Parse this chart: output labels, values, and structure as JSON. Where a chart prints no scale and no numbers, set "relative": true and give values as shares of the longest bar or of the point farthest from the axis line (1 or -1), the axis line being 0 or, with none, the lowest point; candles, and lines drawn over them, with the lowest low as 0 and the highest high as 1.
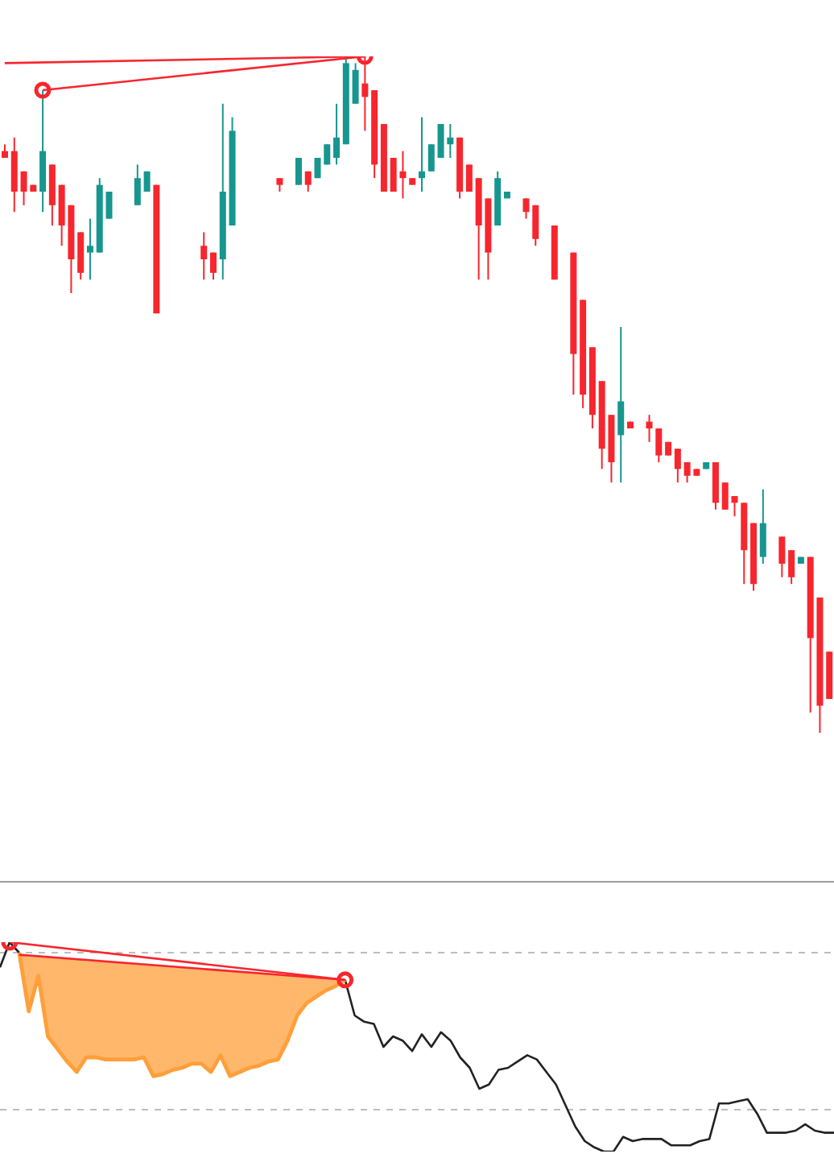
{
  "chart_data": [
    {
      "type": "candlestick",
      "relative": true,
      "categories": [
        null,
        null,
        null,
        null,
        null,
        null,
        null,
        null,
        null,
        null,
        null,
        null,
        null,
        null,
        null,
        null,
        null,
        null,
        null,
        null,
        null,
        null,
        null,
        null,
        null,
        null,
        null,
        null,
        null,
        null,
        null,
        null,
        null,
        null,
        null,
        null,
        null,
        null,
        null,
        null,
        null,
        null,
        null,
        null,
        null,
        null,
        null,
        null,
        null,
        null,
        null,
        null,
        null,
        null,
        null,
        null,
        null,
        null,
        null,
        null,
        null,
        null,
        null,
        null,
        null,
        null,
        null,
        null,
        null,
        null,
        null,
        null,
        null,
        null,
        null,
        null,
        null,
        null,
        null,
        null,
        null,
        null,
        null,
        null,
        null,
        null,
        null,
        null
      ],
      "ohlc": [
        [
          0.86,
          0.87,
          0.85,
          0.85
        ],
        [
          0.86,
          0.88,
          0.77,
          0.8
        ],
        [
          0.83,
          0.83,
          0.78,
          0.8
        ],
        [
          0.81,
          0.81,
          0.8,
          0.8
        ],
        [
          0.8,
          0.95,
          0.77,
          0.86
        ],
        [
          0.84,
          0.84,
          0.75,
          0.78
        ],
        [
          0.81,
          0.81,
          0.72,
          0.75
        ],
        [
          0.78,
          0.78,
          0.65,
          0.7
        ],
        [
          0.74,
          0.74,
          0.67,
          0.68
        ],
        [
          0.71,
          0.76,
          0.67,
          0.72
        ],
        [
          0.71,
          0.82,
          0.71,
          0.81
        ],
        [
          0.76,
          0.8,
          0.76,
          0.8
        ],
        null,
        null,
        [
          0.78,
          0.84,
          0.78,
          0.82
        ],
        [
          0.8,
          0.83,
          0.8,
          0.83
        ],
        [
          0.81,
          0.81,
          0.62,
          0.62
        ],
        null,
        null,
        null,
        null,
        [
          0.72,
          0.74,
          0.67,
          0.7
        ],
        [
          0.71,
          0.71,
          0.67,
          0.68
        ],
        [
          0.7,
          0.93,
          0.67,
          0.8
        ],
        [
          0.75,
          0.91,
          0.75,
          0.89
        ],
        null,
        null,
        null,
        null,
        [
          0.82,
          0.82,
          0.8,
          0.81
        ],
        null,
        [
          0.81,
          0.85,
          0.81,
          0.85
        ],
        [
          0.83,
          0.83,
          0.8,
          0.81
        ],
        [
          0.82,
          0.85,
          0.82,
          0.85
        ],
        [
          0.84,
          0.87,
          0.84,
          0.87
        ],
        [
          0.85,
          0.93,
          0.84,
          0.88
        ],
        [
          0.87,
          1,
          0.87,
          0.99
        ],
        [
          0.93,
          0.99,
          0.93,
          0.98
        ],
        [
          0.96,
          1,
          0.89,
          0.94
        ],
        [
          0.95,
          0.95,
          0.82,
          0.84
        ],
        [
          0.9,
          0.9,
          0.8,
          0.8
        ],
        [
          0.85,
          0.85,
          0.8,
          0.8
        ],
        [
          0.83,
          0.86,
          0.79,
          0.82
        ],
        [
          0.82,
          0.82,
          0.81,
          0.81
        ],
        [
          0.82,
          0.91,
          0.8,
          0.83
        ],
        [
          0.83,
          0.87,
          0.83,
          0.87
        ],
        [
          0.85,
          0.9,
          0.85,
          0.9
        ],
        [
          0.87,
          0.9,
          0.85,
          0.88
        ],
        [
          0.88,
          0.88,
          0.79,
          0.8
        ],
        [
          0.84,
          0.84,
          0.8,
          0.8
        ],
        [
          0.82,
          0.82,
          0.67,
          0.75
        ],
        [
          0.79,
          0.79,
          0.67,
          0.71
        ],
        [
          0.75,
          0.83,
          0.75,
          0.82
        ],
        [
          0.79,
          0.8,
          0.79,
          0.8
        ],
        null,
        [
          0.79,
          0.79,
          0.76,
          0.77
        ],
        [
          0.78,
          0.78,
          0.72,
          0.73
        ],
        null,
        [
          0.75,
          0.75,
          0.67,
          0.67
        ],
        null,
        [
          0.71,
          0.71,
          0.5,
          0.56
        ],
        [
          0.64,
          0.64,
          0.48,
          0.5
        ],
        [
          0.57,
          0.57,
          0.45,
          0.47
        ],
        [
          0.52,
          0.52,
          0.39,
          0.42
        ],
        [
          0.47,
          0.47,
          0.37,
          0.4
        ],
        [
          0.44,
          0.6,
          0.37,
          0.49
        ],
        [
          0.46,
          0.46,
          0.45,
          0.45
        ],
        null,
        [
          0.46,
          0.47,
          0.43,
          0.45
        ],
        [
          0.45,
          0.45,
          0.4,
          0.41
        ],
        [
          0.43,
          0.43,
          0.41,
          0.41
        ],
        [
          0.42,
          0.42,
          0.37,
          0.39
        ],
        [
          0.4,
          0.4,
          0.37,
          0.38
        ],
        [
          0.39,
          0.39,
          0.38,
          0.38
        ],
        [
          0.39,
          0.4,
          0.39,
          0.4
        ],
        [
          0.4,
          0.4,
          0.33,
          0.34
        ],
        [
          0.37,
          0.37,
          0.33,
          0.33
        ],
        [
          0.35,
          0.35,
          0.32,
          0.34
        ],
        [
          0.34,
          0.34,
          0.22,
          0.27
        ],
        [
          0.31,
          0.31,
          0.21,
          0.22
        ],
        [
          0.26,
          0.36,
          0.25,
          0.31
        ],
        null,
        [
          0.29,
          0.29,
          0.23,
          0.25
        ],
        [
          0.27,
          0.27,
          0.22,
          0.23
        ],
        [
          0.25,
          0.26,
          0.25,
          0.26
        ],
        [
          0.26,
          0.26,
          0.03,
          0.14
        ],
        [
          0.2,
          0.2,
          0,
          0.04
        ],
        [
          0.12,
          0.12,
          0.05,
          0.05
        ]
      ],
      "colors": [
        "#f7262e",
        "#f7262e",
        "#f7262e",
        "#f7262e",
        "#17968f",
        "#f7262e",
        "#f7262e",
        "#f7262e",
        "#f7262e",
        "#17968f",
        "#17968f",
        "#17968f",
        null,
        null,
        "#17968f",
        "#17968f",
        "#f7262e",
        null,
        null,
        null,
        null,
        "#f7262e",
        "#f7262e",
        "#17968f",
        "#17968f",
        null,
        null,
        null,
        null,
        "#f7262e",
        null,
        "#17968f",
        "#f7262e",
        "#17968f",
        "#17968f",
        "#17968f",
        "#17968f",
        "#17968f",
        "#f7262e",
        "#f7262e",
        "#f7262e",
        "#f7262e",
        "#f7262e",
        "#f7262e",
        "#17968f",
        "#17968f",
        "#17968f",
        "#17968f",
        "#f7262e",
        "#f7262e",
        "#f7262e",
        "#f7262e",
        "#17968f",
        "#17968f",
        null,
        "#f7262e",
        "#f7262e",
        null,
        "#f7262e",
        null,
        "#f7262e",
        "#f7262e",
        "#f7262e",
        "#f7262e",
        "#f7262e",
        "#17968f",
        "#f7262e",
        null,
        "#f7262e",
        "#f7262e",
        "#f7262e",
        "#f7262e",
        "#f7262e",
        "#f7262e",
        "#17968f",
        "#f7262e",
        "#f7262e",
        "#f7262e",
        "#f7262e",
        "#f7262e",
        "#17968f",
        null,
        "#f7262e",
        "#f7262e",
        "#17968f",
        "#f7262e",
        "#f7262e",
        "#f7262e"
      ],
      "series": [
        {
          "type": "line",
          "color": "#f7262e",
          "marker": "circle",
          "values": [
            null,
            null,
            null,
            null,
            0.95,
            null,
            null,
            null,
            null,
            null,
            null,
            null,
            null,
            null,
            null,
            null,
            null,
            null,
            null,
            null,
            null,
            null,
            null,
            null,
            null,
            null,
            null,
            null,
            null,
            null,
            null,
            null,
            null,
            null,
            null,
            null,
            null,
            null,
            1,
            null,
            null,
            null,
            null,
            null,
            null,
            null,
            null,
            null,
            null,
            null,
            null,
            null,
            null,
            null,
            null,
            null,
            null,
            null,
            null,
            null,
            null,
            null,
            null,
            null,
            null,
            null,
            null,
            null,
            null,
            null,
            null,
            null,
            null,
            null,
            null,
            null,
            null,
            null,
            null,
            null,
            null,
            null,
            null,
            null,
            null,
            null,
            null,
            null
          ]
        },
        {
          "type": "line",
          "color": "#f7262e",
          "values": [
            0.99,
            null,
            null,
            null,
            null,
            null,
            null,
            null,
            null,
            null,
            null,
            null,
            null,
            null,
            null,
            null,
            null,
            null,
            null,
            null,
            null,
            null,
            null,
            null,
            null,
            null,
            null,
            null,
            null,
            null,
            null,
            null,
            null,
            null,
            null,
            null,
            null,
            null,
            1,
            null,
            null,
            null,
            null,
            null,
            null,
            null,
            null,
            null,
            null,
            null,
            null,
            null,
            null,
            null,
            null,
            null,
            null,
            null,
            null,
            null,
            null,
            null,
            null,
            null,
            null,
            null,
            null,
            null,
            null,
            null,
            null,
            null,
            null,
            null,
            null,
            null,
            null,
            null,
            null,
            null,
            null,
            null,
            null,
            null,
            null,
            null,
            null,
            null
          ]
        }
      ]
    },
    {
      "type": "line",
      "relative": true,
      "categories": [
        null,
        null,
        null,
        null,
        null,
        null,
        null,
        null,
        null,
        null,
        null,
        null,
        null,
        null,
        null,
        null,
        null,
        null,
        null,
        null,
        null,
        null,
        null,
        null,
        null,
        null,
        null,
        null,
        null,
        null,
        null,
        null,
        null,
        null,
        null,
        null,
        null,
        null,
        null,
        null,
        null,
        null,
        null,
        null,
        null,
        null,
        null,
        null,
        null,
        null,
        null,
        null,
        null,
        null,
        null,
        null,
        null,
        null,
        null,
        null,
        null,
        null,
        null,
        null,
        null,
        null,
        null,
        null,
        null,
        null,
        null,
        null,
        null,
        null,
        null,
        null,
        null,
        null,
        null,
        null,
        null,
        null,
        null,
        null,
        null,
        null,
        null,
        null
      ],
      "ref_lines": [
        {
          "axis": "y",
          "value": 0.95,
          "color": "#bdbdbd",
          "line_style": "dashed"
        },
        {
          "axis": "y",
          "value": 0.2,
          "color": "#bdbdbd",
          "line_style": "dashed"
        }
      ],
      "series": [
        {
          "type": "line",
          "color": "#222222",
          "values": [
            0.88,
            1,
            0.95,
            null,
            null,
            null,
            null,
            null,
            null,
            null,
            null,
            null,
            null,
            null,
            null,
            null,
            null,
            null,
            null,
            null,
            null,
            null,
            null,
            null,
            null,
            null,
            null,
            null,
            null,
            null,
            null,
            null,
            null,
            null,
            null,
            null,
            0.82,
            0.65,
            0.62,
            0.61,
            0.5,
            0.55,
            0.53,
            0.48,
            0.56,
            0.5,
            0.57,
            0.53,
            0.45,
            0.4,
            0.3,
            0.32,
            0.39,
            0.4,
            0.43,
            0.46,
            0.44,
            0.38,
            0.32,
            0.22,
            0.12,
            0.05,
            0.02,
            0,
            0,
            0.07,
            0.05,
            0.06,
            0.06,
            0.06,
            0.03,
            0.03,
            0.03,
            0.05,
            0.06,
            0.23,
            0.23,
            0.24,
            0.25,
            0.18,
            0.09,
            0.09,
            0.09,
            0.1,
            0.13,
            0.1,
            0.09,
            0.09
          ]
        },
        {
          "type": "line",
          "color": "#ff9f3a",
          "values": [
            null,
            null,
            0.95,
            0.67,
            0.84,
            0.55,
            0.49,
            0.43,
            0.38,
            0.45,
            0.45,
            0.44,
            0.44,
            0.44,
            0.44,
            0.45,
            0.36,
            0.37,
            0.39,
            0.4,
            0.42,
            0.42,
            0.38,
            0.46,
            0.36,
            0.38,
            0.4,
            0.41,
            0.43,
            0.44,
            0.53,
            0.65,
            0.71,
            0.74,
            0.77,
            0.79,
            0.82,
            null,
            null,
            null,
            null,
            null,
            null,
            null,
            null,
            null,
            null,
            null,
            null,
            null,
            null,
            null,
            null,
            null,
            null,
            null,
            null,
            null,
            null,
            null,
            null,
            null,
            null,
            null,
            null,
            null,
            null,
            null,
            null,
            null,
            null,
            null,
            null,
            null,
            null,
            null,
            null,
            null,
            null,
            null,
            null,
            null,
            null,
            null,
            null,
            null,
            null,
            null
          ],
          "lower": [
            null,
            null,
            0.95,
            0.67,
            0.84,
            0.55,
            0.49,
            0.43,
            0.38,
            0.45,
            0.45,
            0.44,
            0.44,
            0.44,
            0.44,
            0.45,
            0.36,
            0.37,
            0.39,
            0.4,
            0.42,
            0.42,
            0.38,
            0.46,
            0.36,
            0.38,
            0.4,
            0.41,
            0.43,
            0.44,
            0.53,
            0.65,
            0.71,
            0.74,
            0.77,
            0.79,
            0.82,
            null,
            null,
            null,
            null,
            null,
            null,
            null,
            null,
            null,
            null,
            null,
            null,
            null,
            null,
            null,
            null,
            null,
            null,
            null,
            null,
            null,
            null,
            null,
            null,
            null,
            null,
            null,
            null,
            null,
            null,
            null,
            null,
            null,
            null,
            null,
            null,
            null,
            null,
            null,
            null,
            null,
            null,
            null,
            null,
            null,
            null,
            null,
            null,
            null,
            null,
            null
          ],
          "upper": [
            null,
            null,
            0.94,
            0.93,
            0.93,
            0.93,
            0.92,
            0.92,
            0.92,
            0.91,
            0.91,
            0.91,
            0.9,
            0.9,
            0.9,
            0.89,
            0.89,
            0.89,
            0.88,
            0.88,
            0.88,
            0.87,
            0.87,
            0.87,
            0.86,
            0.86,
            0.86,
            0.85,
            0.85,
            0.85,
            0.84,
            0.84,
            0.84,
            0.83,
            0.83,
            0.83,
            0.82,
            null,
            null,
            null,
            null,
            null,
            null,
            null,
            null,
            null,
            null,
            null,
            null,
            null,
            null,
            null,
            null,
            null,
            null,
            null,
            null,
            null,
            null,
            null,
            null,
            null,
            null,
            null,
            null,
            null,
            null,
            null,
            null,
            null,
            null,
            null,
            null,
            null,
            null,
            null,
            null,
            null,
            null,
            null,
            null,
            null,
            null,
            null,
            null,
            null,
            null,
            null
          ]
        },
        {
          "type": "line",
          "color": "#f7262e",
          "marker": "circle",
          "values": [
            null,
            1,
            null,
            null,
            null,
            null,
            null,
            null,
            null,
            null,
            null,
            null,
            null,
            null,
            null,
            null,
            null,
            null,
            null,
            null,
            null,
            null,
            null,
            null,
            null,
            null,
            null,
            null,
            null,
            null,
            null,
            null,
            null,
            null,
            null,
            null,
            0.82,
            null,
            null,
            null,
            null,
            null,
            null,
            null,
            null,
            null,
            null,
            null,
            null,
            null,
            null,
            null,
            null,
            null,
            null,
            null,
            null,
            null,
            null,
            null,
            null,
            null,
            null,
            null,
            null,
            null,
            null,
            null,
            null,
            null,
            null,
            null,
            null,
            null,
            null,
            null,
            null,
            null,
            null,
            null,
            null,
            null,
            null,
            null,
            null,
            null,
            null,
            null
          ]
        },
        {
          "type": "line",
          "color": "#f7262e",
          "values": [
            null,
            null,
            0.94,
            null,
            null,
            null,
            null,
            null,
            null,
            null,
            null,
            null,
            null,
            null,
            null,
            null,
            null,
            null,
            null,
            null,
            null,
            null,
            null,
            null,
            null,
            null,
            null,
            null,
            null,
            null,
            null,
            null,
            null,
            null,
            null,
            null,
            0.82,
            null,
            null,
            null,
            null,
            null,
            null,
            null,
            null,
            null,
            null,
            null,
            null,
            null,
            null,
            null,
            null,
            null,
            null,
            null,
            null,
            null,
            null,
            null,
            null,
            null,
            null,
            null,
            null,
            null,
            null,
            null,
            null,
            null,
            null,
            null,
            null,
            null,
            null,
            null,
            null,
            null,
            null,
            null,
            null,
            null,
            null,
            null,
            null,
            null,
            null,
            null
          ]
        }
      ]
    }
  ]
}
